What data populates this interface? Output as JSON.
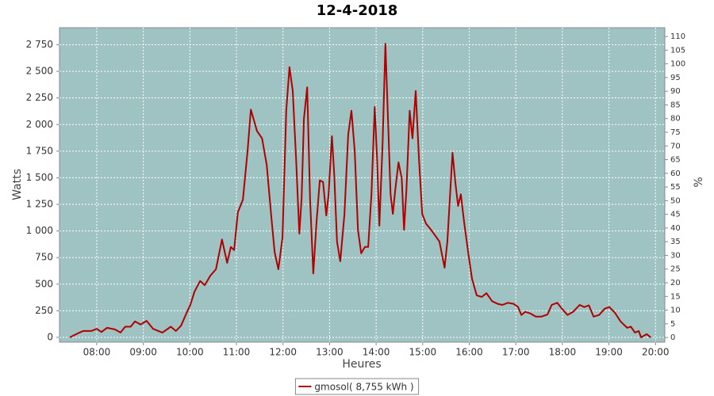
{
  "chart_data": {
    "type": "line",
    "title": "12-4-2018",
    "x_label": "Heures",
    "y_label": "Watts",
    "y2_label": "%",
    "xlim": [
      7.2,
      20.2
    ],
    "xticks": [
      {
        "value": 8,
        "label": "08:00"
      },
      {
        "value": 9,
        "label": "09:00"
      },
      {
        "value": 10,
        "label": "10:00"
      },
      {
        "value": 11,
        "label": "11:00"
      },
      {
        "value": 12,
        "label": "12:00"
      },
      {
        "value": 13,
        "label": "13:00"
      },
      {
        "value": 14,
        "label": "14:00"
      },
      {
        "value": 15,
        "label": "15:00"
      },
      {
        "value": 16,
        "label": "16:00"
      },
      {
        "value": 17,
        "label": "17:00"
      },
      {
        "value": 18,
        "label": "18:00"
      },
      {
        "value": 19,
        "label": "19:00"
      },
      {
        "value": 20,
        "label": "20:00"
      }
    ],
    "ylim": [
      -45,
      2910
    ],
    "yticks": [
      0,
      250,
      500,
      750,
      {
        "value": 1000,
        "label": "1 000"
      },
      {
        "value": 1250,
        "label": "1 250"
      },
      {
        "value": 1500,
        "label": "1 500"
      },
      {
        "value": 1750,
        "label": "1 750"
      },
      {
        "value": 2000,
        "label": "2 000"
      },
      {
        "value": 2250,
        "label": "2 250"
      },
      {
        "value": 2500,
        "label": "2 500"
      },
      {
        "value": 2750,
        "label": "2 750"
      }
    ],
    "y2lim": [
      -1.7,
      113.2
    ],
    "y2ticks": [
      0,
      5,
      10,
      15,
      20,
      25,
      30,
      35,
      40,
      45,
      50,
      55,
      60,
      65,
      70,
      75,
      80,
      85,
      90,
      95,
      100,
      105,
      110
    ],
    "grid": true,
    "background": "#9fc3c3",
    "legend_position": "bottom",
    "x": [
      7.42,
      7.63,
      7.71,
      7.88,
      8.0,
      8.1,
      8.22,
      8.39,
      8.51,
      8.61,
      8.73,
      8.82,
      8.94,
      9.07,
      9.21,
      9.41,
      9.59,
      9.7,
      9.81,
      9.93,
      10.01,
      10.1,
      10.22,
      10.32,
      10.44,
      10.56,
      10.69,
      10.8,
      10.88,
      10.95,
      11.03,
      11.14,
      11.24,
      11.31,
      11.37,
      11.44,
      11.55,
      11.65,
      11.75,
      11.82,
      11.9,
      11.99,
      12.07,
      12.14,
      12.21,
      12.28,
      12.35,
      12.4,
      12.45,
      12.52,
      12.58,
      12.65,
      12.72,
      12.79,
      12.86,
      12.93,
      12.98,
      13.05,
      13.1,
      13.16,
      13.23,
      13.32,
      13.4,
      13.47,
      13.54,
      13.61,
      13.68,
      13.76,
      13.83,
      13.9,
      13.97,
      14.02,
      14.07,
      14.14,
      14.2,
      14.26,
      14.31,
      14.36,
      14.41,
      14.48,
      14.55,
      14.6,
      14.65,
      14.72,
      14.78,
      14.85,
      14.92,
      14.99,
      15.07,
      15.18,
      15.28,
      15.36,
      15.47,
      15.53,
      15.64,
      15.7,
      15.76,
      15.82,
      15.89,
      15.98,
      16.06,
      16.16,
      16.27,
      16.37,
      16.49,
      16.61,
      16.71,
      16.83,
      16.95,
      17.05,
      17.12,
      17.2,
      17.31,
      17.43,
      17.55,
      17.68,
      17.77,
      17.89,
      17.99,
      18.11,
      18.23,
      18.37,
      18.47,
      18.57,
      18.67,
      18.79,
      18.91,
      19.01,
      19.13,
      19.25,
      19.39,
      19.47,
      19.56,
      19.64,
      19.69,
      19.81,
      19.9
    ],
    "series": [
      {
        "name": "gmosol( 8,755 kWh )",
        "color": "#b00000",
        "values": [
          0,
          45,
          60,
          60,
          80,
          50,
          90,
          75,
          45,
          100,
          100,
          150,
          120,
          155,
          80,
          45,
          100,
          60,
          110,
          230,
          305,
          430,
          530,
          490,
          580,
          640,
          920,
          700,
          850,
          820,
          1175,
          1295,
          1755,
          2140,
          2050,
          1940,
          1870,
          1620,
          1125,
          800,
          640,
          940,
          2130,
          2540,
          2315,
          1680,
          975,
          1310,
          2055,
          2350,
          1310,
          600,
          1085,
          1475,
          1460,
          1145,
          1345,
          1890,
          1530,
          900,
          715,
          1160,
          1905,
          2130,
          1755,
          1010,
          790,
          850,
          850,
          1345,
          2165,
          1680,
          1050,
          1830,
          2760,
          1980,
          1345,
          1160,
          1385,
          1645,
          1495,
          1010,
          1385,
          2130,
          1870,
          2315,
          1680,
          1160,
          1070,
          1010,
          950,
          900,
          655,
          900,
          1735,
          1460,
          1235,
          1345,
          1085,
          790,
          550,
          395,
          380,
          415,
          340,
          315,
          305,
          325,
          315,
          285,
          210,
          240,
          225,
          195,
          195,
          215,
          305,
          325,
          270,
          210,
          240,
          305,
          285,
          300,
          195,
          210,
          270,
          285,
          230,
          150,
          90,
          100,
          45,
          60,
          0,
          30,
          0
        ]
      }
    ]
  }
}
